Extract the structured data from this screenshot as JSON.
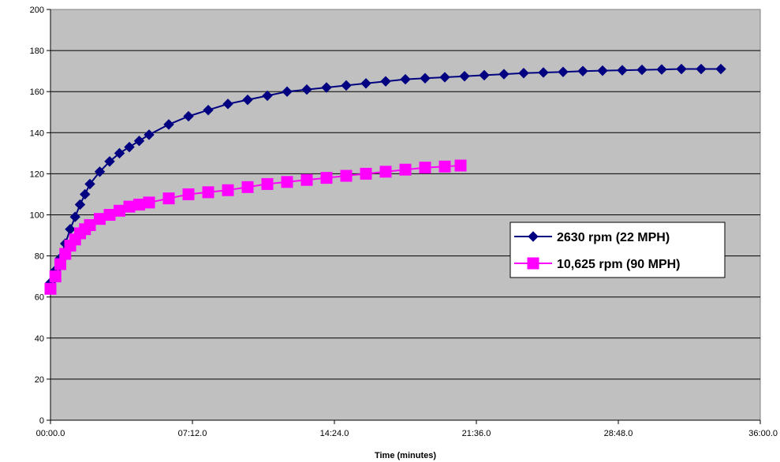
{
  "chart_data": {
    "type": "line",
    "title": "",
    "xlabel": "Time (minutes)",
    "ylabel": "",
    "x_unit": "minutes",
    "xlim": [
      0,
      36
    ],
    "ylim": [
      0,
      200
    ],
    "x_ticks": [
      0,
      7.2,
      14.4,
      21.6,
      28.8,
      36
    ],
    "x_tick_labels": [
      "00:00.0",
      "07:12.0",
      "14:24.0",
      "21:36.0",
      "28:48.0",
      "36:00.0"
    ],
    "y_ticks": [
      0,
      20,
      40,
      60,
      80,
      100,
      120,
      140,
      160,
      180,
      200
    ],
    "y_tick_labels": [
      "0",
      "20",
      "40",
      "60",
      "80",
      "100",
      "120",
      "140",
      "160",
      "180",
      "200"
    ],
    "grid": "horizontal",
    "plot_background": "#c0c0c0",
    "legend_position": "right",
    "series": [
      {
        "name": "2630 rpm (22 MPH)",
        "color": "#000080",
        "marker": "diamond",
        "x": [
          0,
          0.25,
          0.5,
          0.75,
          1.0,
          1.25,
          1.5,
          1.75,
          2.0,
          2.5,
          3.0,
          3.5,
          4.0,
          4.5,
          5.0,
          6.0,
          7.0,
          8.0,
          9.0,
          10.0,
          11.0,
          12.0,
          13.0,
          14.0,
          15.0,
          16.0,
          17.0,
          18.0,
          19.0,
          20.0,
          21.0,
          22.0,
          23.0,
          24.0,
          25.0,
          26.0,
          27.0,
          28.0,
          29.0,
          30.0,
          31.0,
          32.0,
          33.0,
          34.0
        ],
        "y": [
          67,
          73,
          79,
          86,
          93,
          99,
          105,
          110,
          115,
          121,
          126,
          130,
          133,
          136,
          139,
          144,
          148,
          151,
          154,
          156,
          158,
          160,
          161,
          162,
          163,
          164,
          165,
          166,
          166.5,
          167,
          167.5,
          168,
          168.5,
          169,
          169.3,
          169.6,
          170,
          170.2,
          170.4,
          170.6,
          170.8,
          171,
          171,
          171
        ]
      },
      {
        "name": "10,625 rpm (90 MPH)",
        "color": "#ff00ff",
        "marker": "square",
        "x": [
          0,
          0.25,
          0.5,
          0.75,
          1.0,
          1.25,
          1.5,
          1.75,
          2.0,
          2.5,
          3.0,
          3.5,
          4.0,
          4.5,
          5.0,
          6.0,
          7.0,
          8.0,
          9.0,
          10.0,
          11.0,
          12.0,
          13.0,
          14.0,
          15.0,
          16.0,
          17.0,
          18.0,
          19.0,
          20.0,
          20.8
        ],
        "y": [
          64,
          70,
          76,
          81,
          85,
          88,
          91,
          93,
          95,
          98,
          100,
          102,
          104,
          105,
          106,
          108,
          110,
          111,
          112,
          113.5,
          115,
          116,
          117,
          118,
          119,
          120,
          121,
          122,
          123,
          123.5,
          124
        ]
      }
    ]
  }
}
